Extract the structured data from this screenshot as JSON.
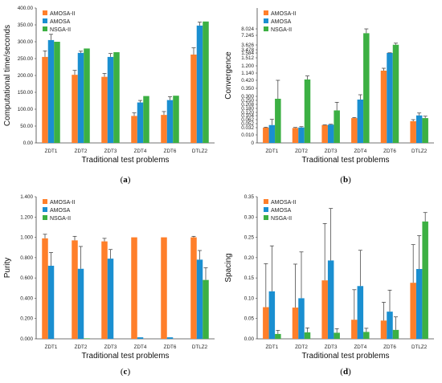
{
  "colors": {
    "AMOSA-II": "#ff7f2a",
    "AMOSA": "#1a8fd1",
    "NSGA-II": "#3cb043"
  },
  "chart_data": [
    {
      "id": "a",
      "type": "bar",
      "caption": "a",
      "ylabel": "Computational time/seconds",
      "xlabel": "Traditional test problems",
      "categories": [
        "ZDT1",
        "ZDT2",
        "ZDT3",
        "ZDT4",
        "ZDT6",
        "DTLZ2"
      ],
      "ylim": [
        0,
        400
      ],
      "yticks": [
        "0.00",
        "50.00",
        "100.00",
        "150.00",
        "200.00",
        "250.00",
        "300.00",
        "350.00",
        "400.00"
      ],
      "ytick_values": [
        0,
        50,
        100,
        150,
        200,
        250,
        300,
        350,
        400
      ],
      "legend_position": "top-left",
      "series": [
        {
          "name": "AMOSA-II",
          "values": [
            255,
            202,
            196,
            80,
            83,
            262
          ],
          "errors": [
            18,
            13,
            10,
            9,
            10,
            20
          ]
        },
        {
          "name": "AMOSA",
          "values": [
            305,
            267,
            255,
            120,
            127,
            348
          ],
          "errors": [
            17,
            5,
            10,
            6,
            10,
            10
          ]
        },
        {
          "name": "NSGA-II",
          "values": [
            300,
            280,
            269,
            139,
            140,
            360
          ],
          "errors": [
            0,
            0,
            0,
            0,
            0,
            0
          ]
        }
      ]
    },
    {
      "id": "b",
      "type": "bar",
      "caption": "b",
      "ylabel": "Convergence",
      "xlabel": "Traditional test problems",
      "categories": [
        "ZDT1",
        "ZDT2",
        "ZDT3",
        "ZDT4",
        "ZDT6",
        "DTLZ2"
      ],
      "yscale": "broken",
      "yticks": [
        "0",
        "0.010",
        "0.032",
        "0.052",
        "0.062",
        "0.104",
        "0.120",
        "0.180",
        "0.208",
        "0.250",
        "0.300",
        "0.350",
        "0.420",
        "1.140",
        "1.200",
        "1.512",
        "1.584",
        "3.478",
        "3.626",
        "7.245",
        "8.024"
      ],
      "legend_position": "top-left",
      "series": [
        {
          "name": "AMOSA-II",
          "values": [
            0.032,
            0.031,
            0.045,
            0.078,
            1.16,
            0.058
          ],
          "errors": [
            0.002,
            0.002,
            0.001,
            0.006,
            0.02,
            0.004
          ]
        },
        {
          "name": "AMOSA",
          "values": [
            0.045,
            0.033,
            0.047,
            0.26,
            1.62,
            0.105
          ],
          "errors": [
            0.02,
            0.004,
            0.002,
            0.05,
            0.07,
            0.012
          ]
        },
        {
          "name": "NSGA-II",
          "values": [
            0.27,
            0.5,
            0.15,
            7.5,
            3.7,
            0.078
          ],
          "errors": [
            0.15,
            0.35,
            0.08,
            0.8,
            0.6,
            0.02
          ]
        }
      ]
    },
    {
      "id": "c",
      "type": "bar",
      "caption": "c",
      "ylabel": "Purity",
      "xlabel": "Traditional test problems",
      "categories": [
        "ZDT1",
        "ZDT2",
        "ZDT3",
        "ZDT4",
        "ZDT6",
        "DTLZ2"
      ],
      "ylim": [
        0,
        1.4
      ],
      "yticks": [
        "0.000",
        "0.200",
        "0.400",
        "0.600",
        "0.800",
        "1.000",
        "1.200",
        "1.400"
      ],
      "ytick_values": [
        0,
        0.2,
        0.4,
        0.6,
        0.8,
        1.0,
        1.2,
        1.4
      ],
      "legend_position": "top-left",
      "series": [
        {
          "name": "AMOSA-II",
          "values": [
            0.99,
            0.97,
            0.96,
            1.0,
            1.0,
            1.0
          ],
          "errors": [
            0.04,
            0.04,
            0.03,
            0.0,
            0.0,
            0.01
          ]
        },
        {
          "name": "AMOSA",
          "values": [
            0.72,
            0.69,
            0.79,
            0.015,
            0.015,
            0.78
          ],
          "errors": [
            0.13,
            0.22,
            0.09,
            0.0,
            0.0,
            0.09
          ]
        },
        {
          "name": "NSGA-II",
          "values": [
            0.0,
            0.005,
            0.0,
            0.0,
            0.0,
            0.58
          ],
          "errors": [
            0.0,
            0.0,
            0.0,
            0.0,
            0.0,
            0.12
          ]
        }
      ]
    },
    {
      "id": "d",
      "type": "bar",
      "caption": "d",
      "ylabel": "Spacing",
      "xlabel": "Traditional test problems",
      "categories": [
        "ZDT1",
        "ZDT2",
        "ZDT3",
        "ZDT4",
        "ZDT6",
        "DTLZ2"
      ],
      "ylim": [
        0,
        0.35
      ],
      "yticks": [
        "0.00",
        "0.05",
        "0.10",
        "0.15",
        "0.20",
        "0.25",
        "0.30",
        "0.35"
      ],
      "ytick_values": [
        0,
        0.05,
        0.1,
        0.15,
        0.2,
        0.25,
        0.3,
        0.35
      ],
      "legend_position": "top-left",
      "series": [
        {
          "name": "AMOSA-II",
          "values": [
            0.078,
            0.077,
            0.144,
            0.047,
            0.045,
            0.138
          ],
          "errors": [
            0.107,
            0.107,
            0.14,
            0.074,
            0.045,
            0.094
          ]
        },
        {
          "name": "AMOSA",
          "values": [
            0.117,
            0.1,
            0.193,
            0.13,
            0.067,
            0.172
          ],
          "errors": [
            0.112,
            0.114,
            0.128,
            0.088,
            0.053,
            0.082
          ]
        },
        {
          "name": "NSGA-II",
          "values": [
            0.012,
            0.016,
            0.015,
            0.017,
            0.022,
            0.289
          ],
          "errors": [
            0.009,
            0.011,
            0.01,
            0.009,
            0.032,
            0.022
          ]
        }
      ]
    }
  ]
}
